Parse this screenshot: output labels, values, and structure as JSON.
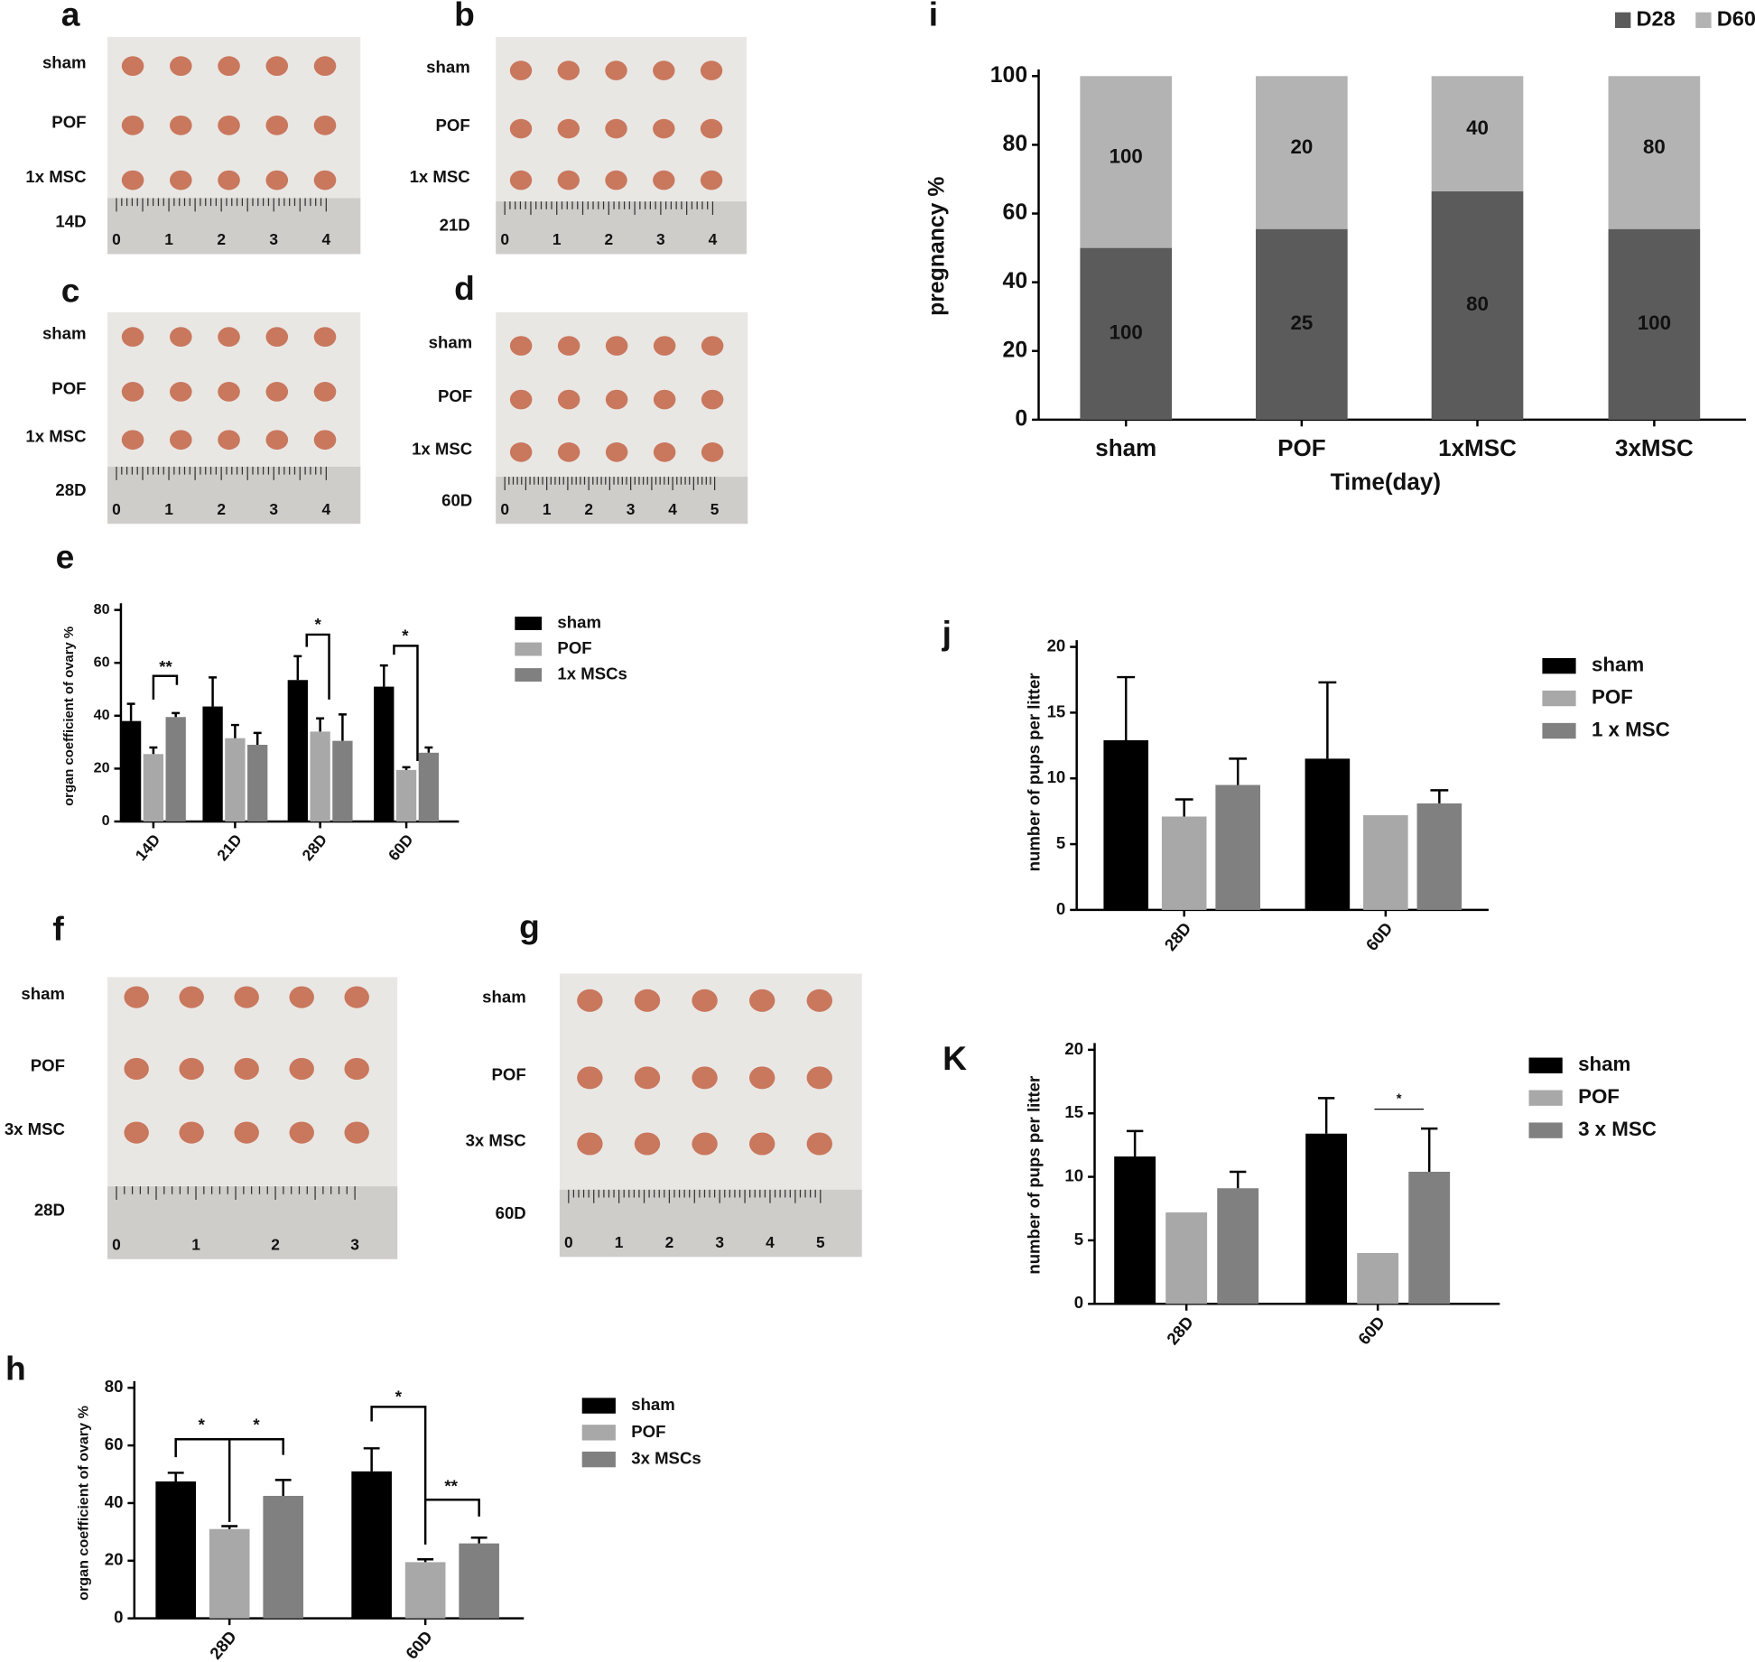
{
  "panels": [
    {
      "letter": "a",
      "labels": [
        "sham",
        "POF",
        "1x MSC",
        "14D"
      ],
      "ruler": [
        "0",
        "1",
        "2",
        "3",
        "4"
      ]
    },
    {
      "letter": "b",
      "labels": [
        "sham",
        "POF",
        "1x MSC",
        "21D"
      ],
      "ruler": [
        "0",
        "1",
        "2",
        "3",
        "4"
      ]
    },
    {
      "letter": "c",
      "labels": [
        "sham",
        "POF",
        "1x MSC",
        "28D"
      ],
      "ruler": [
        "0",
        "1",
        "2",
        "3",
        "4"
      ]
    },
    {
      "letter": "d",
      "labels": [
        "sham",
        "POF",
        "1x MSC",
        "60D"
      ],
      "ruler": [
        "0",
        "1",
        "2",
        "3",
        "4",
        "5"
      ]
    },
    {
      "letter": "f",
      "labels": [
        "sham",
        "POF",
        "3x MSC",
        "28D"
      ],
      "ruler": [
        "0",
        "1",
        "2",
        "3"
      ]
    },
    {
      "letter": "g",
      "labels": [
        "sham",
        "POF",
        "3x MSC",
        "60D"
      ],
      "ruler": [
        "0",
        "1",
        "2",
        "3",
        "4",
        "5"
      ]
    }
  ],
  "chart_data": [
    {
      "type": "bar",
      "panel_label": "e",
      "ylabel": "organ coefficient of ovary %",
      "categories": [
        "14D",
        "21D",
        "28D",
        "60D"
      ],
      "series": [
        {
          "name": "sham",
          "color": "#000000",
          "values": [
            38,
            43.5,
            53.5,
            51
          ],
          "errors": [
            6.5,
            11,
            9,
            8
          ]
        },
        {
          "name": "POF",
          "color": "#a8a8a8",
          "values": [
            25.5,
            31.5,
            34,
            19.5
          ],
          "errors": [
            2.5,
            5,
            5,
            1
          ]
        },
        {
          "name": "1x MSCs",
          "color": "#808080",
          "values": [
            39.5,
            29,
            30.5,
            26
          ],
          "errors": [
            1.5,
            4.5,
            10,
            2
          ]
        }
      ],
      "ylim": [
        0,
        80
      ],
      "yticks": [
        0,
        20,
        40,
        60,
        80
      ],
      "annotations": [
        "**",
        "*",
        "*"
      ]
    },
    {
      "type": "bar",
      "panel_label": "h",
      "ylabel": "organ coefficient of ovary %",
      "categories": [
        "28D",
        "60D"
      ],
      "series": [
        {
          "name": "sham",
          "color": "#000000",
          "values": [
            47.5,
            51
          ],
          "errors": [
            3,
            8
          ]
        },
        {
          "name": "POF",
          "color": "#a8a8a8",
          "values": [
            31,
            19.5
          ],
          "errors": [
            1,
            1
          ]
        },
        {
          "name": "3x MSCs",
          "color": "#808080",
          "values": [
            42.5,
            26
          ],
          "errors": [
            5.5,
            2
          ]
        }
      ],
      "ylim": [
        0,
        80
      ],
      "yticks": [
        0,
        20,
        40,
        60,
        80
      ],
      "annotations": [
        "*",
        "*",
        "*",
        "**"
      ]
    },
    {
      "type": "stacked-bar",
      "panel_label": "i",
      "ylabel": "pregnancy %",
      "xlabel": "Time(day)",
      "categories": [
        "sham",
        "POF",
        "1xMSC",
        "3xMSC"
      ],
      "series": [
        {
          "name": "D28",
          "color": "#5b5b5b",
          "values": [
            50,
            55.5,
            66.5,
            55.5
          ],
          "text_labels": [
            "100",
            "25",
            "80",
            "100"
          ]
        },
        {
          "name": "D60",
          "color": "#b3b3b3",
          "values": [
            50,
            44.5,
            33.5,
            44.5
          ],
          "text_labels": [
            "100",
            "20",
            "40",
            "80"
          ]
        }
      ],
      "ylim": [
        0,
        100
      ],
      "yticks": [
        0,
        20,
        40,
        60,
        80,
        100
      ]
    },
    {
      "type": "bar",
      "panel_label": "j",
      "ylabel": "number of pups per litter",
      "categories": [
        "28D",
        "60D"
      ],
      "series": [
        {
          "name": "sham",
          "color": "#000000",
          "values": [
            12.9,
            11.5
          ],
          "errors": [
            4.8,
            5.8
          ]
        },
        {
          "name": "POF",
          "color": "#a8a8a8",
          "values": [
            7.1,
            7.2
          ],
          "errors": [
            1.3,
            null
          ]
        },
        {
          "name": "1 x MSC",
          "color": "#808080",
          "values": [
            9.5,
            8.1
          ],
          "errors": [
            2,
            1
          ]
        }
      ],
      "ylim": [
        0,
        20
      ],
      "yticks": [
        0,
        5,
        10,
        15,
        20
      ]
    },
    {
      "type": "bar",
      "panel_label": "K",
      "ylabel": "number of pups per litter",
      "categories": [
        "28D",
        "60D"
      ],
      "series": [
        {
          "name": "sham",
          "color": "#000000",
          "values": [
            11.6,
            13.4
          ],
          "errors": [
            2,
            2.8
          ]
        },
        {
          "name": "POF",
          "color": "#a8a8a8",
          "values": [
            7.2,
            4
          ],
          "errors": [
            null,
            null
          ]
        },
        {
          "name": "3 x MSC",
          "color": "#808080",
          "values": [
            9.1,
            10.4
          ],
          "errors": [
            1.3,
            3.4
          ]
        }
      ],
      "ylim": [
        0,
        20
      ],
      "yticks": [
        0,
        5,
        10,
        15,
        20
      ],
      "annotations": [
        "*"
      ]
    }
  ]
}
